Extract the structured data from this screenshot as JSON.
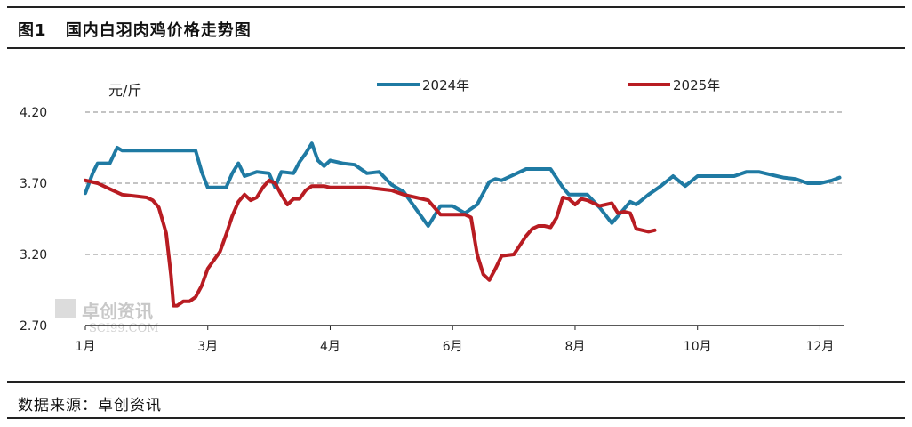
{
  "figure": {
    "label": "图1",
    "title": "国内白羽肉鸡价格走势图",
    "source": "数据来源：卓创资讯"
  },
  "watermark": {
    "text": "卓创资讯",
    "sub": "SCI99.COM"
  },
  "colors": {
    "series_2024": "#1f7aa3",
    "series_2025": "#b81c22",
    "grid": "#8a8a8a",
    "axis": "#222222"
  },
  "chart_data": {
    "type": "line",
    "unit_label": "元/斤",
    "y_ticks": [
      "2.70",
      "3.20",
      "3.70",
      "4.20"
    ],
    "ylim": [
      2.7,
      4.2
    ],
    "x_tick_labels": [
      "1月",
      "3月",
      "4月",
      "6月",
      "8月",
      "10月",
      "12月"
    ],
    "x_tick_weeks": [
      0,
      10,
      20,
      30,
      40,
      50,
      60
    ],
    "x_label_offset": [
      0,
      0,
      0,
      0,
      0,
      0,
      -1
    ],
    "x_range_weeks": [
      0,
      62
    ],
    "grid": true,
    "legend_position": "top",
    "series": [
      {
        "name": "2024年",
        "color_key": "series_2024",
        "x": [
          0,
          0.3,
          0.6,
          1,
          2,
          2.6,
          3,
          4,
          5,
          6,
          7,
          8,
          9,
          9.5,
          10,
          11,
          11.5,
          12,
          12.5,
          13,
          14,
          15,
          15.5,
          16,
          17,
          17.5,
          18,
          18.5,
          19,
          19.5,
          20,
          21,
          22,
          23,
          24,
          25,
          26,
          27,
          28,
          29,
          30,
          31,
          32,
          33,
          33.5,
          34,
          35,
          36,
          37,
          38,
          39,
          39.5,
          40,
          41,
          42,
          43,
          44,
          44.5,
          45,
          46,
          47,
          48,
          49,
          50,
          50.5,
          51,
          52,
          53,
          54,
          55,
          56,
          57,
          58,
          59,
          60,
          61,
          61.6
        ],
        "y": [
          3.63,
          3.7,
          3.77,
          3.84,
          3.84,
          3.95,
          3.93,
          3.93,
          3.93,
          3.93,
          3.93,
          3.93,
          3.93,
          3.78,
          3.67,
          3.67,
          3.67,
          3.77,
          3.84,
          3.75,
          3.78,
          3.77,
          3.67,
          3.78,
          3.77,
          3.85,
          3.91,
          3.98,
          3.86,
          3.82,
          3.86,
          3.84,
          3.83,
          3.77,
          3.78,
          3.69,
          3.64,
          3.52,
          3.4,
          3.54,
          3.54,
          3.49,
          3.55,
          3.71,
          3.73,
          3.72,
          3.76,
          3.8,
          3.8,
          3.8,
          3.67,
          3.62,
          3.62,
          3.62,
          3.53,
          3.42,
          3.52,
          3.57,
          3.55,
          3.62,
          3.68,
          3.75,
          3.68,
          3.75,
          3.75,
          3.75,
          3.75,
          3.75,
          3.78,
          3.78,
          3.76,
          3.74,
          3.73,
          3.7,
          3.7,
          3.72,
          3.74
        ]
      },
      {
        "name": "2025年",
        "color_key": "series_2025",
        "x": [
          0,
          1,
          2,
          3,
          4,
          5,
          5.5,
          6,
          6.3,
          6.6,
          7,
          7.2,
          7.5,
          8,
          8.5,
          9,
          9.5,
          10,
          10.5,
          11,
          11.5,
          12,
          12.5,
          13,
          13.5,
          14,
          14.5,
          15,
          15.5,
          16,
          16.5,
          17,
          17.5,
          18,
          18.5,
          19,
          19.5,
          20,
          21,
          22,
          23,
          24,
          25,
          26,
          26.5,
          27,
          28,
          29,
          30,
          31,
          31.5,
          32,
          32.5,
          33,
          33.5,
          34,
          35,
          36,
          36.5,
          37,
          37.5,
          38,
          38.5,
          39,
          39.5,
          40,
          40.5,
          41,
          42,
          43,
          43.5,
          44,
          44.5,
          45,
          45.5,
          46,
          46.5
        ],
        "y": [
          3.72,
          3.7,
          3.66,
          3.62,
          3.61,
          3.6,
          3.58,
          3.53,
          3.44,
          3.35,
          3.05,
          2.84,
          2.84,
          2.87,
          2.87,
          2.9,
          2.98,
          3.1,
          3.16,
          3.22,
          3.34,
          3.47,
          3.57,
          3.62,
          3.58,
          3.6,
          3.67,
          3.72,
          3.7,
          3.62,
          3.55,
          3.59,
          3.59,
          3.65,
          3.68,
          3.68,
          3.68,
          3.67,
          3.67,
          3.67,
          3.67,
          3.66,
          3.65,
          3.62,
          3.61,
          3.6,
          3.58,
          3.48,
          3.48,
          3.48,
          3.46,
          3.2,
          3.06,
          3.02,
          3.1,
          3.19,
          3.2,
          3.33,
          3.38,
          3.4,
          3.4,
          3.39,
          3.46,
          3.6,
          3.59,
          3.55,
          3.59,
          3.58,
          3.54,
          3.56,
          3.49,
          3.5,
          3.49,
          3.38,
          3.37,
          3.36,
          3.37
        ]
      }
    ]
  }
}
